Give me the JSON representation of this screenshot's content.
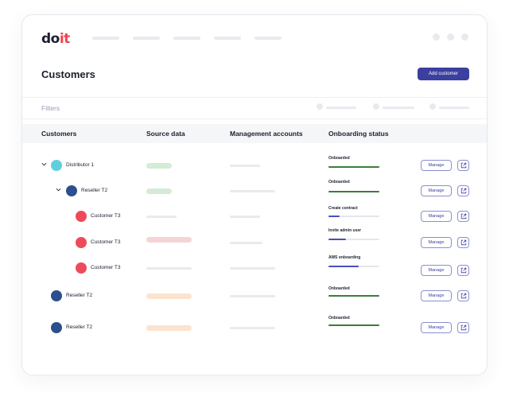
{
  "brand": {
    "logo_main": "do",
    "logo_accent": "it"
  },
  "header": {
    "title": "Customers",
    "add_button": "Add customer"
  },
  "filters": {
    "label": "Filters"
  },
  "table": {
    "columns": [
      "Customers",
      "Source data",
      "Management accounts",
      "Onboarding status"
    ],
    "rows": [
      {
        "name": "Distributor 1",
        "status": "Onboarded",
        "progress": 1.0,
        "manage": "Manage"
      },
      {
        "name": "Reseller T2",
        "status": "Onboarded",
        "progress": 1.0,
        "manage": "Manage"
      },
      {
        "name": "Customer T3",
        "status": "Create contract",
        "progress": 0.22,
        "manage": "Manage"
      },
      {
        "name": "Customer T3",
        "status": "Invite admin user",
        "progress": 0.35,
        "manage": "Manage"
      },
      {
        "name": "Customer T3",
        "status": "AWS onboarding",
        "progress": 0.6,
        "manage": "Manage"
      },
      {
        "name": "Reseller T2",
        "status": "Onboarded",
        "progress": 1.0,
        "manage": "Manage"
      },
      {
        "name": "Reseller T2",
        "status": "Onboarded",
        "progress": 1.0,
        "manage": "Manage"
      }
    ]
  },
  "colors": {
    "primary": "#3b3f9e",
    "onboarded": "#3d7d3a",
    "in_progress": "#4a4fbf",
    "distributor_avatar": "#5fd0db",
    "reseller_avatar": "#2c4f8e",
    "customer_avatar": "#ee4b5a",
    "source_green": "#d4ebd6",
    "source_red": "#f6d4d6",
    "source_orange": "#fbe4cf"
  }
}
